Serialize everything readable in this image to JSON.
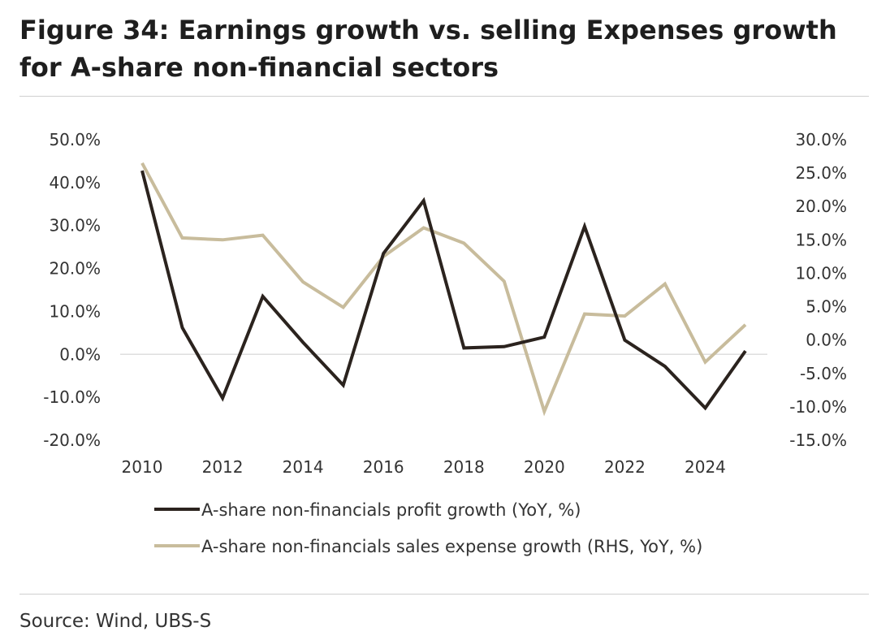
{
  "title": "Figure 34: Earnings growth vs. selling Expenses growth for A-share non-financial sectors",
  "source": "Source: Wind, UBS-S",
  "chart_data": {
    "type": "line",
    "x": [
      2010,
      2011,
      2012,
      2013,
      2014,
      2015,
      2016,
      2017,
      2018,
      2019,
      2020,
      2021,
      2022,
      2023,
      2024,
      2025
    ],
    "x_tick_labels": [
      "2010",
      "2012",
      "2014",
      "2016",
      "2018",
      "2020",
      "2022",
      "2024"
    ],
    "y_left": {
      "ylim": [
        -20,
        50
      ],
      "ticks": [
        50,
        40,
        30,
        20,
        10,
        0,
        -10,
        -20
      ],
      "tick_labels": [
        "50.0%",
        "40.0%",
        "30.0%",
        "20.0%",
        "10.0%",
        "0.0%",
        "-10.0%",
        "-20.0%"
      ]
    },
    "y_right": {
      "ylim": [
        -15,
        30
      ],
      "ticks": [
        30,
        25,
        20,
        15,
        10,
        5,
        0,
        -5,
        -10,
        -15
      ],
      "tick_labels": [
        "30.0%",
        "25.0%",
        "20.0%",
        "15.0%",
        "10.0%",
        "5.0%",
        "0.0%",
        "-5.0%",
        "-10.0%",
        "-15.0%"
      ]
    },
    "series": [
      {
        "name": "A-share non-financials profit growth (YoY, %)",
        "axis": "left",
        "color": "#2b231e",
        "values": [
          42.8,
          6.2,
          -10.2,
          13.5,
          2.8,
          -7.2,
          23.5,
          35.8,
          1.5,
          1.8,
          4.0,
          29.8,
          3.3,
          -2.8,
          -12.5,
          0.8
        ]
      },
      {
        "name": "A-share non-financials sales expense growth (RHS, YoY, %)",
        "axis": "right",
        "color": "#c8bc9c",
        "values": [
          26.5,
          15.3,
          15.0,
          15.7,
          8.7,
          4.9,
          12.5,
          16.8,
          14.5,
          8.8,
          -10.7,
          3.9,
          3.6,
          8.4,
          -3.3,
          2.3
        ]
      }
    ],
    "legend_position": "bottom",
    "grid": false
  }
}
